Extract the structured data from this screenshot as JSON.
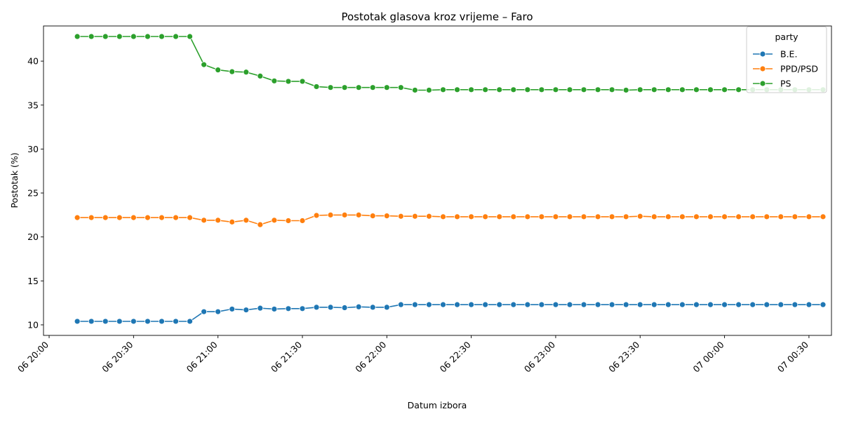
{
  "chart_data": {
    "type": "line",
    "title": "Postotak glasova kroz vrijeme – Faro",
    "xlabel": "Datum izbora",
    "ylabel": "Postotak (%)",
    "x_tick_labels": [
      "06 20:00",
      "06 20:30",
      "06 21:00",
      "06 21:30",
      "06 22:00",
      "06 22:30",
      "06 23:00",
      "06 23:30",
      "07 00:00",
      "07 00:30"
    ],
    "y_ticks": [
      10,
      15,
      20,
      25,
      30,
      35,
      40
    ],
    "ylim": [
      8.8,
      44.0
    ],
    "xlim": [
      "06 19:58",
      "07 00:38"
    ],
    "legend_title": "party",
    "legend_position": "top-right",
    "x": [
      "06 20:10",
      "06 20:15",
      "06 20:20",
      "06 20:25",
      "06 20:30",
      "06 20:35",
      "06 20:40",
      "06 20:45",
      "06 20:50",
      "06 20:55",
      "06 21:00",
      "06 21:05",
      "06 21:10",
      "06 21:15",
      "06 21:20",
      "06 21:25",
      "06 21:30",
      "06 21:35",
      "06 21:40",
      "06 21:45",
      "06 21:50",
      "06 21:55",
      "06 22:00",
      "06 22:05",
      "06 22:10",
      "06 22:15",
      "06 22:20",
      "06 22:25",
      "06 22:30",
      "06 22:35",
      "06 22:40",
      "06 22:45",
      "06 22:50",
      "06 22:55",
      "06 23:00",
      "06 23:05",
      "06 23:10",
      "06 23:15",
      "06 23:20",
      "06 23:25",
      "06 23:30",
      "06 23:35",
      "06 23:40",
      "06 23:45",
      "06 23:50",
      "06 23:55",
      "07 00:00",
      "07 00:05",
      "07 00:10",
      "07 00:15",
      "07 00:20",
      "07 00:25",
      "07 00:30",
      "07 00:35"
    ],
    "series": [
      {
        "name": "B.E.",
        "color": "#1f77b4",
        "values": [
          10.4,
          10.4,
          10.4,
          10.4,
          10.4,
          10.4,
          10.4,
          10.4,
          10.4,
          11.5,
          11.5,
          11.8,
          11.7,
          11.9,
          11.8,
          11.85,
          11.85,
          12.0,
          12.0,
          11.95,
          12.05,
          12.0,
          12.0,
          12.3,
          12.3,
          12.3,
          12.3,
          12.3,
          12.3,
          12.3,
          12.3,
          12.3,
          12.3,
          12.3,
          12.3,
          12.3,
          12.3,
          12.3,
          12.3,
          12.3,
          12.3,
          12.3,
          12.3,
          12.3,
          12.3,
          12.3,
          12.3,
          12.3,
          12.3,
          12.3,
          12.3,
          12.3,
          12.3,
          12.3
        ]
      },
      {
        "name": "PPD/PSD",
        "color": "#ff7f0e",
        "values": [
          22.2,
          22.2,
          22.2,
          22.2,
          22.2,
          22.2,
          22.2,
          22.2,
          22.2,
          21.9,
          21.9,
          21.7,
          21.9,
          21.4,
          21.9,
          21.85,
          21.85,
          22.45,
          22.5,
          22.5,
          22.5,
          22.4,
          22.4,
          22.35,
          22.35,
          22.35,
          22.3,
          22.3,
          22.3,
          22.3,
          22.3,
          22.3,
          22.3,
          22.3,
          22.3,
          22.3,
          22.3,
          22.3,
          22.3,
          22.3,
          22.35,
          22.3,
          22.3,
          22.3,
          22.3,
          22.3,
          22.3,
          22.3,
          22.3,
          22.3,
          22.3,
          22.3,
          22.3,
          22.3
        ]
      },
      {
        "name": "PS",
        "color": "#2ca02c",
        "values": [
          42.8,
          42.8,
          42.8,
          42.8,
          42.8,
          42.8,
          42.8,
          42.8,
          42.8,
          39.6,
          39.0,
          38.8,
          38.75,
          38.3,
          37.75,
          37.7,
          37.7,
          37.1,
          37.0,
          37.0,
          37.0,
          37.0,
          37.0,
          37.0,
          36.7,
          36.7,
          36.75,
          36.75,
          36.75,
          36.75,
          36.75,
          36.75,
          36.75,
          36.75,
          36.75,
          36.75,
          36.75,
          36.75,
          36.75,
          36.7,
          36.75,
          36.75,
          36.75,
          36.75,
          36.75,
          36.75,
          36.75,
          36.75,
          36.75,
          36.75,
          36.75,
          36.75,
          36.75,
          36.75
        ]
      }
    ]
  }
}
